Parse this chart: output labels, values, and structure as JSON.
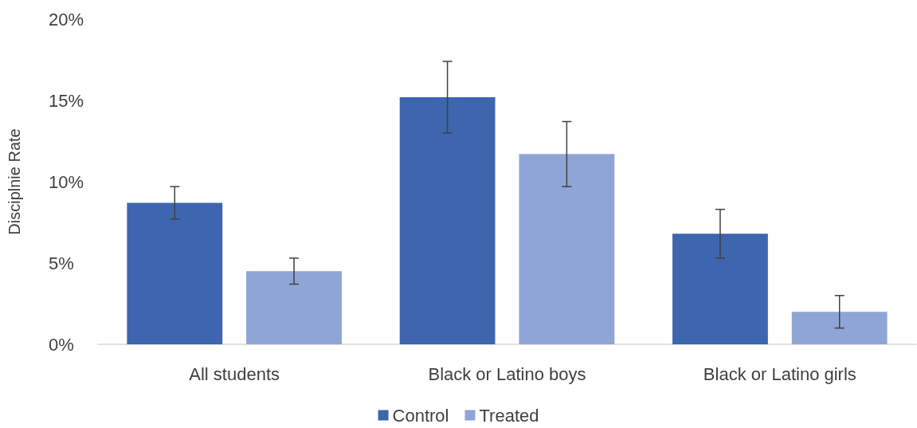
{
  "chart_data": {
    "type": "bar",
    "ylabel": "Disciplnie Rate",
    "categories": [
      "All students",
      "Black or Latino boys",
      "Black or Latino girls"
    ],
    "series": [
      {
        "name": "Control",
        "color": "#3d66ae",
        "values": [
          8.7,
          15.2,
          6.8
        ],
        "errors": [
          1.0,
          2.2,
          1.5
        ]
      },
      {
        "name": "Treated",
        "color": "#8fa5d6",
        "values": [
          4.5,
          11.7,
          2.0
        ],
        "errors": [
          0.8,
          2.0,
          1.0
        ]
      }
    ],
    "ylim": [
      0,
      20
    ],
    "yticks": [
      {
        "value": 0,
        "label": "0%"
      },
      {
        "value": 5,
        "label": "5%"
      },
      {
        "value": 10,
        "label": "10%"
      },
      {
        "value": 15,
        "label": "15%"
      },
      {
        "value": 20,
        "label": "20%"
      }
    ],
    "grid": false,
    "legend": "bottom"
  }
}
